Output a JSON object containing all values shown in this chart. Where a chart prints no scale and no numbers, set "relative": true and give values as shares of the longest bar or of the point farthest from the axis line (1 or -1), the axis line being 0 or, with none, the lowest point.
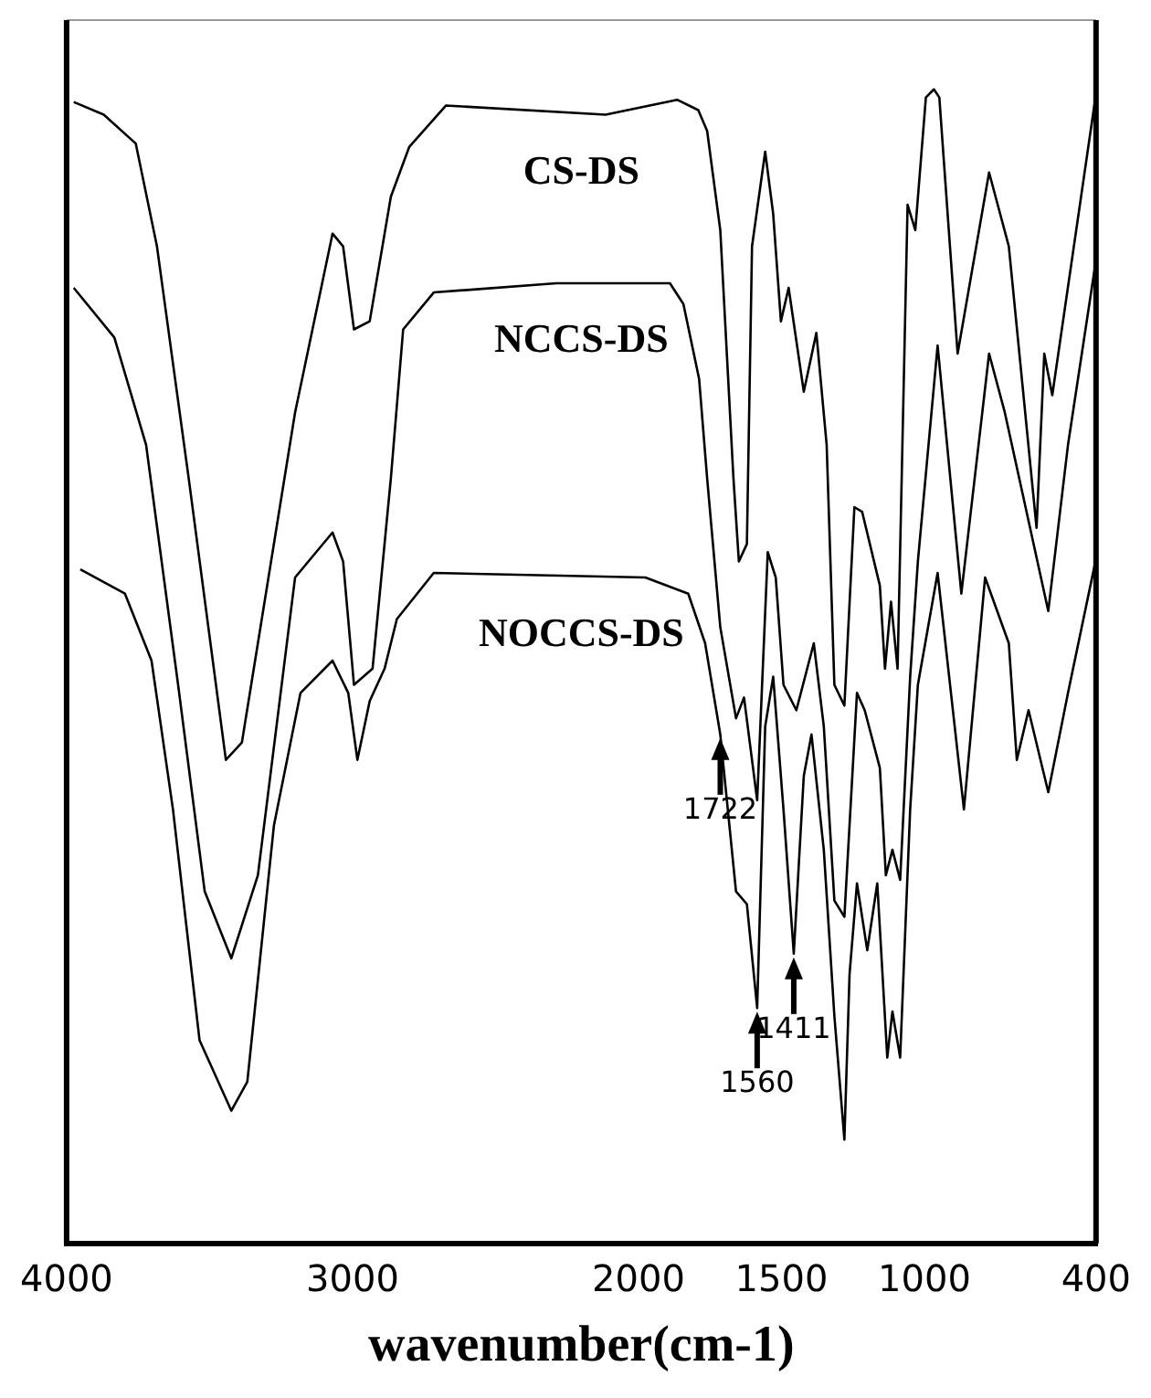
{
  "chart_data": {
    "type": "line",
    "xlabel": "wavenumber(cm-1)",
    "relative": true,
    "xlim": [
      4000,
      400
    ],
    "xticks": [
      4000,
      3000,
      2000,
      1500,
      1000,
      400
    ],
    "grid": false,
    "legend": false,
    "marker": "none",
    "line_style": "solid",
    "series": [
      {
        "name": "CS-DS",
        "color": "#000000",
        "x": [
          3975,
          3870,
          3758,
          3684,
          3573,
          3443,
          3387,
          3201,
          3070,
          3033,
          2995,
          2940,
          2866,
          2802,
          2673,
          2115,
          1865,
          1791,
          1760,
          1714,
          1668,
          1649,
          1621,
          1603,
          1557,
          1529,
          1502,
          1475,
          1422,
          1378,
          1342,
          1315,
          1280,
          1245,
          1218,
          1156,
          1138,
          1117,
          1094,
          1059,
          1032,
          995,
          967,
          948,
          884,
          774,
          705,
          608,
          581,
          553,
          402
        ],
        "values": [
          0.989,
          0.978,
          0.953,
          0.864,
          0.663,
          0.419,
          0.434,
          0.72,
          0.875,
          0.864,
          0.792,
          0.799,
          0.907,
          0.95,
          0.986,
          0.978,
          0.991,
          0.982,
          0.964,
          0.878,
          0.663,
          0.591,
          0.606,
          0.864,
          0.946,
          0.892,
          0.799,
          0.828,
          0.738,
          0.789,
          0.692,
          0.484,
          0.466,
          0.638,
          0.634,
          0.57,
          0.498,
          0.556,
          0.498,
          0.9,
          0.878,
          0.993,
          1,
          0.993,
          0.771,
          0.928,
          0.864,
          0.62,
          0.771,
          0.735,
          0.993
        ]
      },
      {
        "name": "NCCS-DS",
        "color": "#000000",
        "x": [
          3975,
          3833,
          3722,
          3610,
          3517,
          3424,
          3331,
          3201,
          3070,
          3033,
          2995,
          2930,
          2866,
          2823,
          2716,
          2287,
          1890,
          1843,
          1788,
          1760,
          1714,
          1659,
          1631,
          1585,
          1548,
          1520,
          1493,
          1448,
          1387,
          1352,
          1315,
          1280,
          1236,
          1209,
          1156,
          1135,
          1112,
          1085,
          1050,
          1023,
          954,
          871,
          774,
          719,
          567,
          498,
          402
        ],
        "values": [
          0.828,
          0.785,
          0.692,
          0.484,
          0.305,
          0.247,
          0.319,
          0.577,
          0.616,
          0.591,
          0.484,
          0.498,
          0.663,
          0.792,
          0.824,
          0.832,
          0.832,
          0.814,
          0.749,
          0.663,
          0.534,
          0.455,
          0.473,
          0.384,
          0.599,
          0.577,
          0.484,
          0.462,
          0.52,
          0.448,
          0.297,
          0.283,
          0.477,
          0.462,
          0.412,
          0.319,
          0.341,
          0.315,
          0.491,
          0.591,
          0.778,
          0.563,
          0.771,
          0.72,
          0.548,
          0.692,
          0.849
        ]
      },
      {
        "name": "NOCCS-DS",
        "color": "#000000",
        "x": [
          3952,
          3796,
          3703,
          3628,
          3535,
          3424,
          3368,
          3275,
          3182,
          3070,
          3015,
          2983,
          2940,
          2888,
          2845,
          2716,
          1976,
          1826,
          1767,
          1714,
          1659,
          1621,
          1585,
          1557,
          1529,
          1493,
          1457,
          1422,
          1395,
          1352,
          1315,
          1280,
          1262,
          1236,
          1200,
          1165,
          1130,
          1112,
          1085,
          1050,
          1023,
          954,
          862,
          788,
          705,
          677,
          636,
          567,
          498,
          402
        ],
        "values": [
          0.584,
          0.563,
          0.505,
          0.376,
          0.176,
          0.115,
          0.14,
          0.362,
          0.477,
          0.505,
          0.477,
          0.419,
          0.47,
          0.498,
          0.541,
          0.581,
          0.577,
          0.563,
          0.52,
          0.441,
          0.305,
          0.294,
          0.204,
          0.448,
          0.491,
          0.376,
          0.251,
          0.405,
          0.441,
          0.341,
          0.197,
          0.09,
          0.233,
          0.312,
          0.254,
          0.312,
          0.161,
          0.201,
          0.161,
          0.376,
          0.484,
          0.581,
          0.376,
          0.577,
          0.52,
          0.419,
          0.462,
          0.391,
          0.477,
          0.591
        ]
      }
    ],
    "annotations": [
      {
        "text": "1722",
        "x": 1714,
        "y": 0.441
      },
      {
        "text": "1560",
        "x": 1585,
        "y": 0.204
      },
      {
        "text": "1411",
        "x": 1457,
        "y": 0.251
      }
    ]
  }
}
